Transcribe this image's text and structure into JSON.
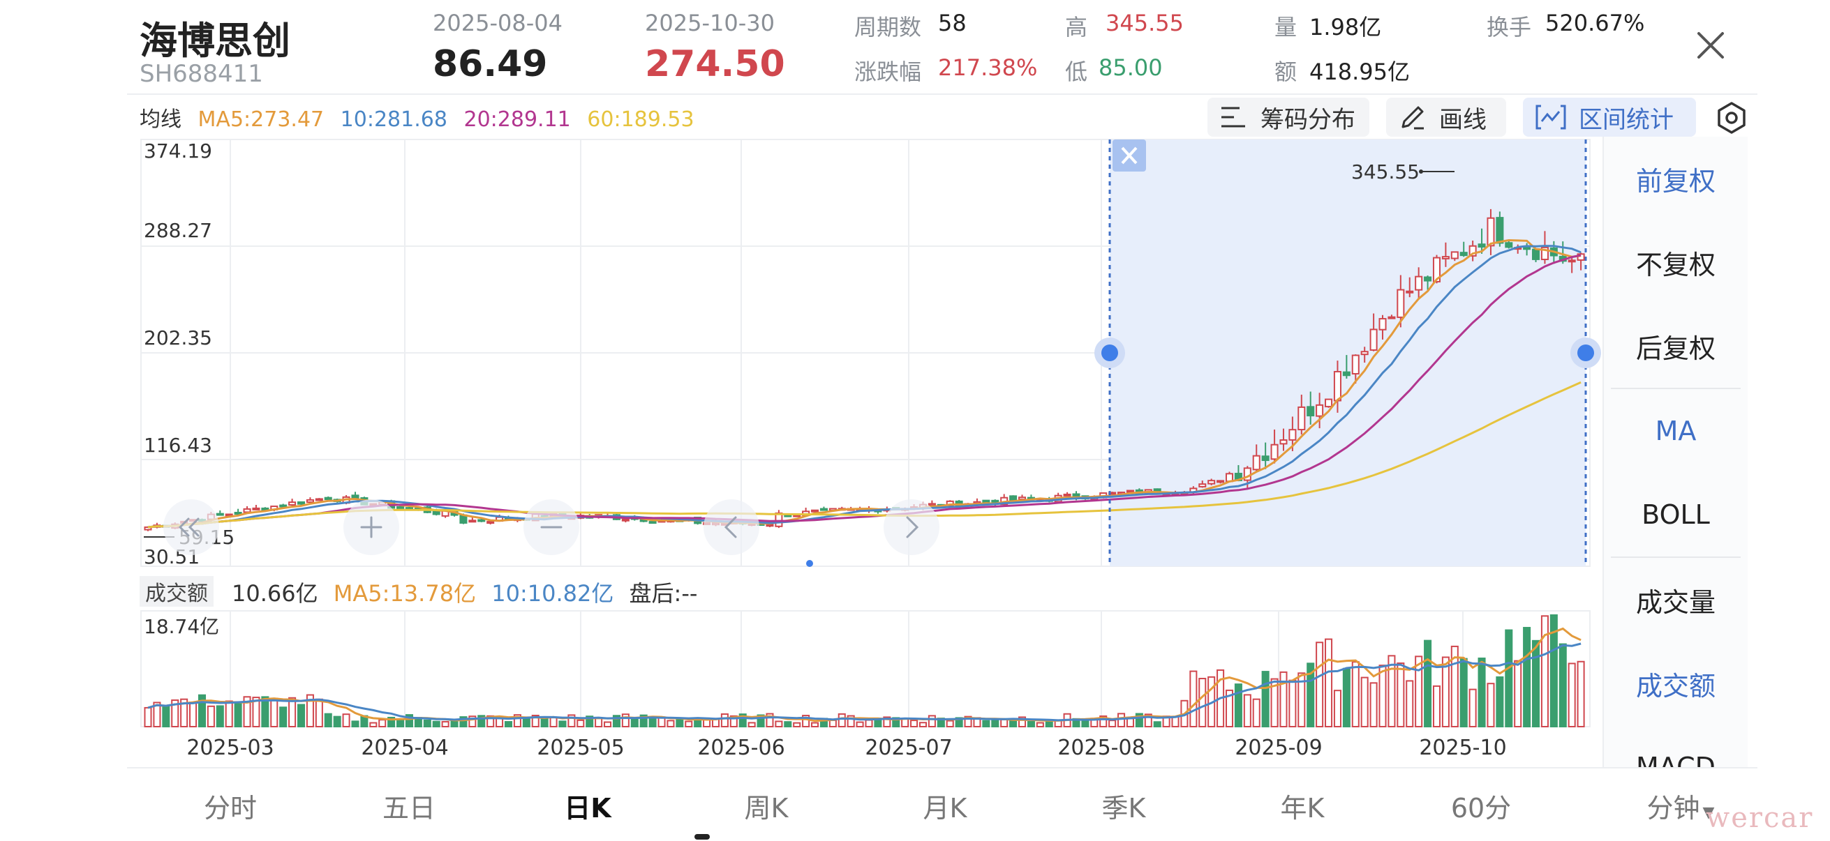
{
  "header": {
    "name": "海博思创",
    "code": "SH688411",
    "start_date": "2025-08-04",
    "start_price": "86.49",
    "end_date": "2025-10-30",
    "end_price": "274.50",
    "period_label": "周期数",
    "period_value": "58",
    "change_label": "涨跌幅",
    "change_value": "217.38%",
    "high_label": "高",
    "high_value": "345.55",
    "low_label": "低",
    "low_value": "85.00",
    "volume_label": "量",
    "volume_value": "1.98亿",
    "amount_label": "额",
    "amount_value": "418.95亿",
    "turnover_label": "换手",
    "turnover_value": "520.67%"
  },
  "ma": {
    "label": "均线",
    "ma5": "MA5:273.47",
    "ma10": "10:281.68",
    "ma20": "20:289.11",
    "ma60": "60:189.53"
  },
  "toolbar": {
    "chips_label": "筹码分布",
    "draw_label": "画线",
    "range_label": "区间统计"
  },
  "chart_data": {
    "type": "candlestick",
    "price_axis_ticks": [
      "374.19",
      "288.27",
      "202.35",
      "116.43",
      "30.51"
    ],
    "ylim": [
      30.51,
      374.19
    ],
    "min_marker": "59.15",
    "max_marker": "345.55",
    "x_ticks": [
      "2025-03",
      "2025-04",
      "2025-05",
      "2025-06",
      "2025-07",
      "2025-08",
      "2025-09",
      "2025-10"
    ],
    "selection": {
      "start": "2025-08-04",
      "end": "2025-10-30"
    },
    "colors": {
      "up": "#d0474e",
      "down": "#3a9e6e",
      "ma5": "#e39a3b",
      "ma10": "#4a86c5",
      "ma20": "#b2368f",
      "ma60": "#e6c33d"
    }
  },
  "volume_chart": {
    "box_label": "成交额",
    "current": "10.66亿",
    "ma5": "MA5:13.78亿",
    "ma10": "10:10.82亿",
    "after_hours": "盘后:--",
    "max_tick": "18.74亿"
  },
  "right_panel": {
    "items": [
      "前复权",
      "不复权",
      "后复权",
      "MA",
      "BOLL",
      "成交量",
      "成交额",
      "MACD"
    ]
  },
  "tabs": [
    "分时",
    "五日",
    "日K",
    "周K",
    "月K",
    "季K",
    "年K",
    "60分",
    "分钟"
  ],
  "watermark": "wercar"
}
